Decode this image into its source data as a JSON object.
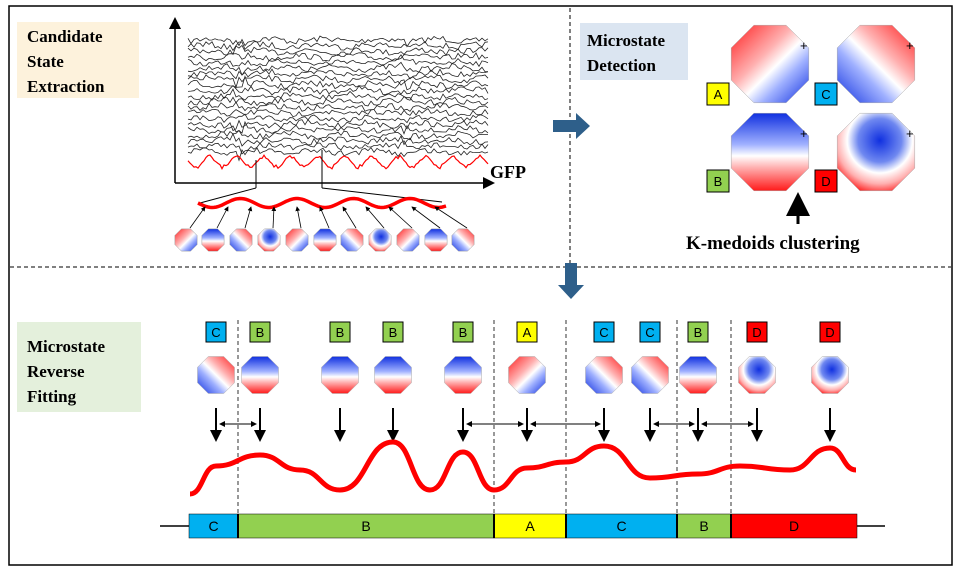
{
  "sections": {
    "candidate": {
      "lines": [
        "Candidate",
        "State",
        "Extraction"
      ],
      "bg": "#fdf2dc"
    },
    "detection": {
      "lines": [
        "Microstate",
        "Detection"
      ],
      "bg": "#dbe5f1"
    },
    "fitting": {
      "lines": [
        "Microstate",
        "Reverse",
        "Fitting"
      ],
      "bg": "#e4f0dc"
    }
  },
  "gfp_label": "GFP",
  "clustering_label": "K-medoids clustering",
  "classes": {
    "A": {
      "label": "A",
      "color": "#ffff00"
    },
    "B": {
      "label": "B",
      "color": "#92d050"
    },
    "C": {
      "label": "C",
      "color": "#00b0f0"
    },
    "D": {
      "label": "D",
      "color": "#ff0000"
    }
  },
  "prototype_maps": [
    {
      "class": "A",
      "label": "A"
    },
    {
      "class": "C",
      "label": "C"
    },
    {
      "class": "B",
      "label": "B"
    },
    {
      "class": "D",
      "label": "D"
    }
  ],
  "fit_badges": [
    "C",
    "B",
    "B",
    "B",
    "B",
    "A",
    "C",
    "C",
    "B",
    "D",
    "D"
  ],
  "timeline_segments": [
    {
      "label": "C",
      "class": "C"
    },
    {
      "label": "B",
      "class": "B"
    },
    {
      "label": "A",
      "class": "A"
    },
    {
      "label": "C",
      "class": "C"
    },
    {
      "label": "B",
      "class": "B"
    },
    {
      "label": "D",
      "class": "D"
    }
  ],
  "colors": {
    "arrow": "#2e5f8a",
    "gfp": "#ff0000",
    "eeg": "#222222"
  }
}
